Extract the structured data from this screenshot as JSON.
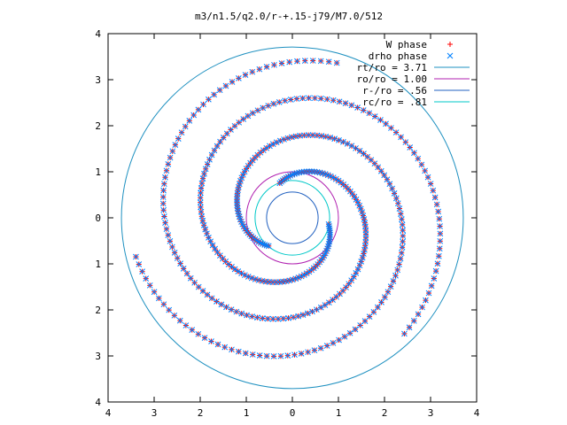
{
  "chart_data": {
    "type": "scatter",
    "title": "m3/n1.5/q2.0/r-+.15-j79/M7.0/512",
    "xlim": [
      -4,
      4
    ],
    "ylim": [
      -4,
      4
    ],
    "x_ticks": [
      -4,
      -3,
      -2,
      -1,
      0,
      1,
      2,
      3,
      4
    ],
    "y_ticks": [
      -4,
      -3,
      -2,
      -1,
      0,
      1,
      2,
      3,
      4
    ],
    "x_tick_labels": [
      "4",
      "3",
      "2",
      "1",
      "0",
      "1",
      "2",
      "3",
      "4"
    ],
    "y_tick_labels": [
      "4",
      "3",
      "2",
      "1",
      "0",
      "1",
      "2",
      "3",
      "4"
    ],
    "grid": false,
    "legend_position": "top-right",
    "series": [
      {
        "name": "W phase",
        "marker": "plus",
        "color": "#ff0000",
        "arms": 3,
        "r_min": 0.8,
        "r_max": 3.5,
        "pitch_turns": 1.1,
        "theta0_deg": 110
      },
      {
        "name": "drho phase",
        "marker": "cross",
        "color": "#0080ff",
        "arms": 3,
        "r_min": 0.8,
        "r_max": 3.5,
        "pitch_turns": 1.1,
        "theta0_deg": 110
      }
    ],
    "circles": [
      {
        "name": "rt/ro = 3.71",
        "radius": 3.71,
        "color": "#1e90c0"
      },
      {
        "name": "ro/ro = 1.00",
        "radius": 1.0,
        "color": "#b020b0"
      },
      {
        "name": "r-/ro = .56",
        "radius": 0.56,
        "color": "#2060c0"
      },
      {
        "name": "rc/ro = .81",
        "radius": 0.81,
        "color": "#00c8c8"
      }
    ]
  }
}
